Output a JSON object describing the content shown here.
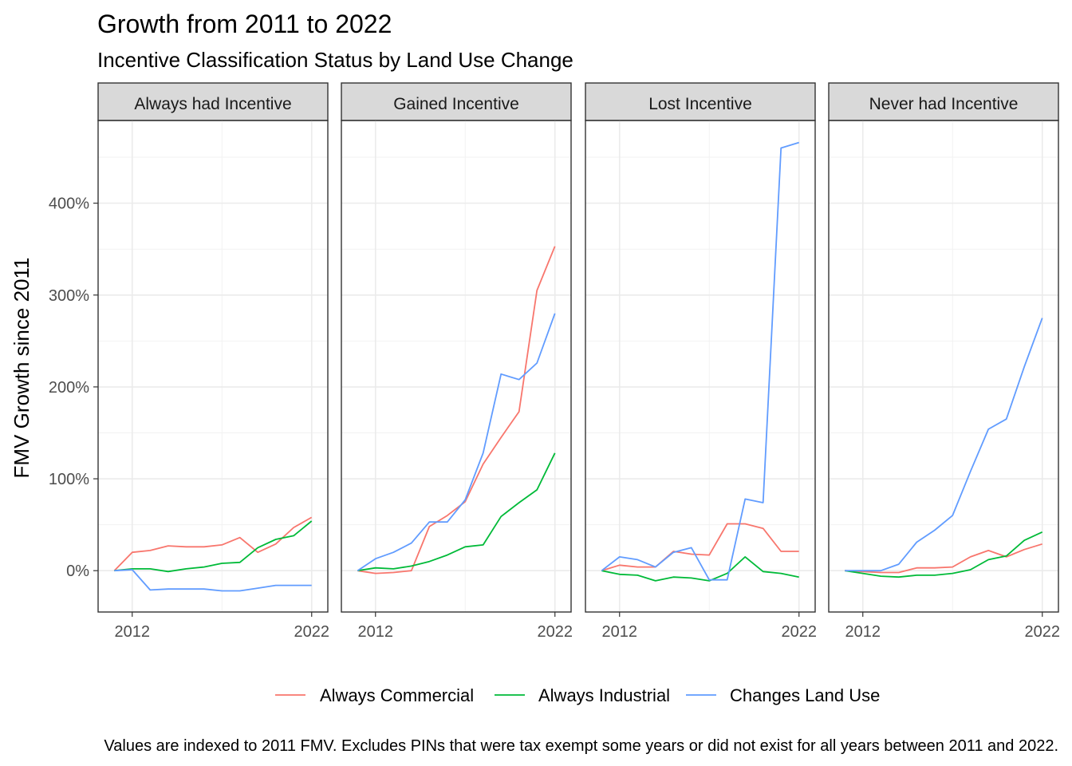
{
  "chart_data": {
    "type": "line",
    "title": "Growth from 2011 to 2022",
    "subtitle": "Incentive Classification Status by Land Use Change",
    "ylabel": "FMV Growth since 2011",
    "xlabel": "",
    "caption": "Values are indexed to 2011 FMV. Excludes PINs that were tax exempt some years or did not exist for all years between 2011 and 2022.",
    "x": [
      2011,
      2012,
      2013,
      2014,
      2015,
      2016,
      2017,
      2018,
      2019,
      2020,
      2021,
      2022
    ],
    "x_ticks": [
      2012,
      2022
    ],
    "x_tick_labels": [
      "2012",
      "2022"
    ],
    "xlim": [
      2010.1,
      2022.9
    ],
    "ylim": [
      -45,
      490
    ],
    "y_ticks": [
      0,
      100,
      200,
      300,
      400
    ],
    "y_tick_labels": [
      "0%",
      "100%",
      "200%",
      "300%",
      "400%"
    ],
    "grid": true,
    "legend_position": "bottom",
    "series_styles": [
      {
        "name": "Always Commercial",
        "color": "#F8766D"
      },
      {
        "name": "Always Industrial",
        "color": "#00BA38"
      },
      {
        "name": "Changes Land Use",
        "color": "#619CFF"
      }
    ],
    "panels": [
      {
        "label": "Always had Incentive",
        "series": [
          {
            "name": "Always Commercial",
            "values": [
              0,
              20,
              22,
              27,
              26,
              26,
              28,
              36,
              20,
              29,
              47,
              58
            ]
          },
          {
            "name": "Always Industrial",
            "values": [
              0,
              2,
              2,
              -1,
              2,
              4,
              8,
              9,
              25,
              34,
              38,
              54
            ]
          },
          {
            "name": "Changes Land Use",
            "values": [
              0,
              1,
              -21,
              -20,
              -20,
              -20,
              -22,
              -22,
              -19,
              -16,
              -16,
              -16
            ]
          }
        ]
      },
      {
        "label": "Gained Incentive",
        "series": [
          {
            "name": "Always Commercial",
            "values": [
              0,
              -3,
              -2,
              0,
              48,
              60,
              75,
              116,
              145,
              173,
              305,
              353
            ]
          },
          {
            "name": "Always Industrial",
            "values": [
              0,
              3,
              2,
              5,
              10,
              17,
              26,
              28,
              59,
              74,
              88,
              128
            ]
          },
          {
            "name": "Changes Land Use",
            "values": [
              0,
              13,
              20,
              30,
              53,
              53,
              77,
              128,
              214,
              208,
              226,
              280
            ]
          }
        ]
      },
      {
        "label": "Lost Incentive",
        "series": [
          {
            "name": "Always Commercial",
            "values": [
              0,
              6,
              4,
              4,
              21,
              18,
              17,
              51,
              51,
              46,
              21,
              21
            ]
          },
          {
            "name": "Always Industrial",
            "values": [
              0,
              -4,
              -5,
              -11,
              -7,
              -8,
              -11,
              -3,
              15,
              -1,
              -3,
              -7
            ]
          },
          {
            "name": "Changes Land Use",
            "values": [
              0,
              15,
              12,
              4,
              20,
              25,
              -10,
              -10,
              78,
              74,
              460,
              466
            ]
          }
        ]
      },
      {
        "label": "Never had Incentive",
        "series": [
          {
            "name": "Always Commercial",
            "values": [
              0,
              -1,
              -2,
              -2,
              3,
              3,
              4,
              15,
              22,
              15,
              23,
              29
            ]
          },
          {
            "name": "Always Industrial",
            "values": [
              0,
              -3,
              -6,
              -7,
              -5,
              -5,
              -3,
              1,
              12,
              16,
              33,
              42
            ]
          },
          {
            "name": "Changes Land Use",
            "values": [
              0,
              0,
              0,
              7,
              31,
              44,
              60,
              108,
              154,
              165,
              222,
              275
            ]
          }
        ]
      }
    ]
  }
}
